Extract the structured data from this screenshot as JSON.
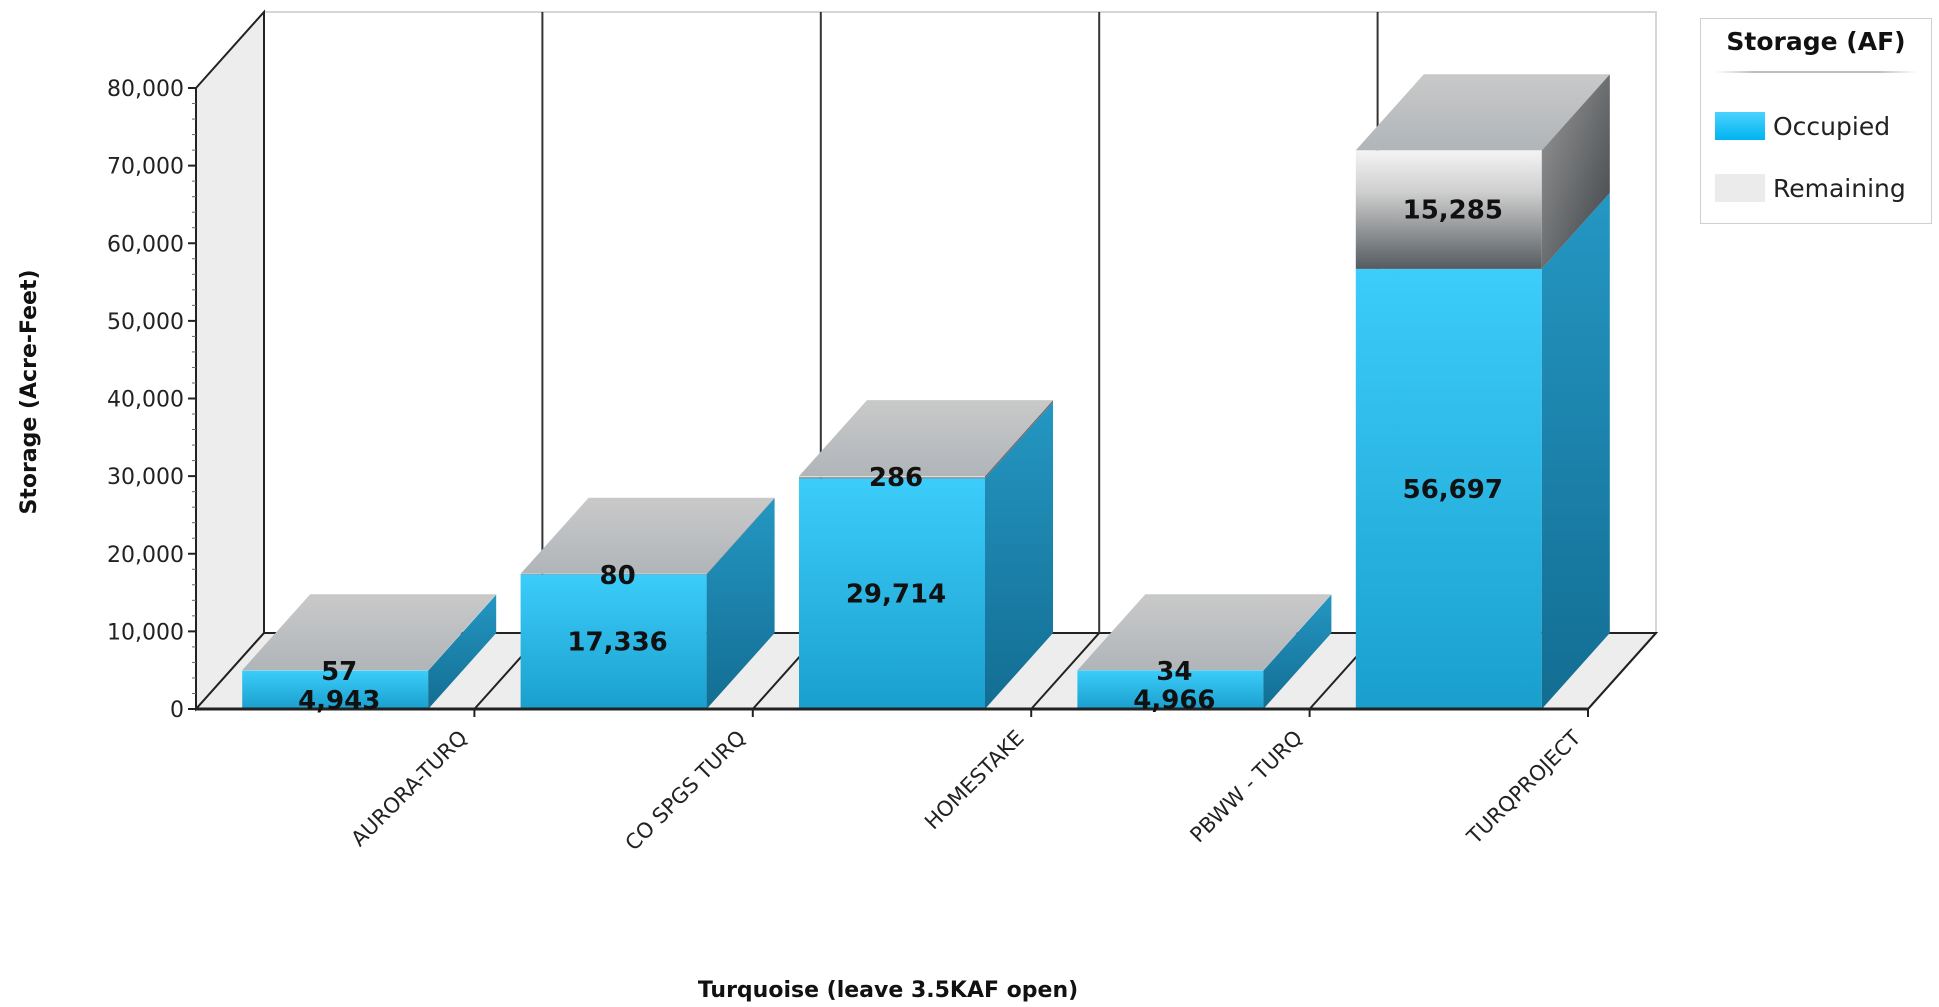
{
  "chart_data": {
    "type": "bar",
    "stacked": true,
    "three_d": true,
    "categories": [
      "AURORA-TURQ",
      "CO SPGS TURQ",
      "HOMESTAKE",
      "PBWW - TURQ",
      "TURQPROJECT"
    ],
    "series": [
      {
        "name": "Occupied",
        "values": [
          4943,
          17336,
          29714,
          4966,
          56697
        ],
        "labels": [
          "4,943",
          "17,336",
          "29,714",
          "4,966",
          "56,697"
        ]
      },
      {
        "name": "Remaining",
        "values": [
          57,
          80,
          286,
          34,
          15285
        ],
        "labels": [
          "57",
          "80",
          "286",
          "34",
          "15,285"
        ]
      }
    ],
    "xlabel": "Turquoise (leave 3.5KAF open)",
    "ylabel": "Storage (Acre-Feet)",
    "ylim": [
      0,
      80000
    ],
    "yticks": [
      "0",
      "10,000",
      "20,000",
      "30,000",
      "40,000",
      "50,000",
      "60,000",
      "70,000",
      "80,000"
    ],
    "legend": {
      "title": "Storage (AF)",
      "position": "top-right"
    },
    "grid": true,
    "colors": {
      "occupied": "#29b6e6",
      "remaining": "#b7bcc0",
      "wall": "#ededed"
    }
  }
}
